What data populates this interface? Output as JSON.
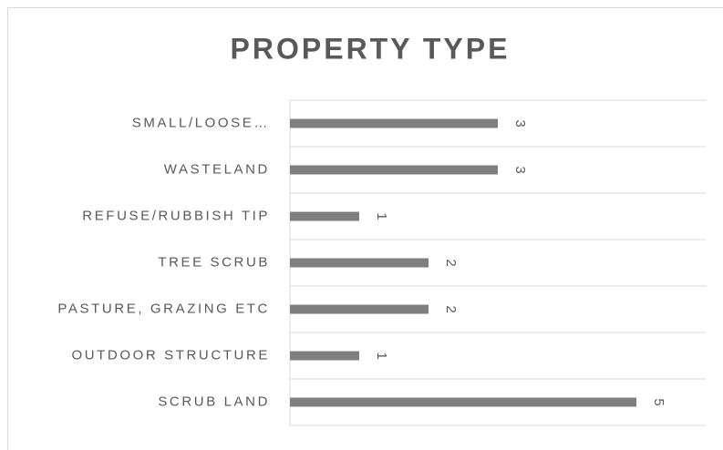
{
  "chart_data": {
    "type": "bar",
    "orientation": "horizontal",
    "title": "PROPERTY TYPE",
    "categories": [
      "SMALL/LOOSE…",
      "WASTELAND",
      "REFUSE/RUBBISH TIP",
      "TREE SCRUB",
      "PASTURE, GRAZING ETC",
      "OUTDOOR STRUCTURE",
      "SCRUB LAND"
    ],
    "values": [
      3,
      3,
      1,
      2,
      2,
      1,
      5
    ],
    "color": "#7f7f7f",
    "xlim": [
      0,
      6
    ],
    "data_labels": true
  }
}
